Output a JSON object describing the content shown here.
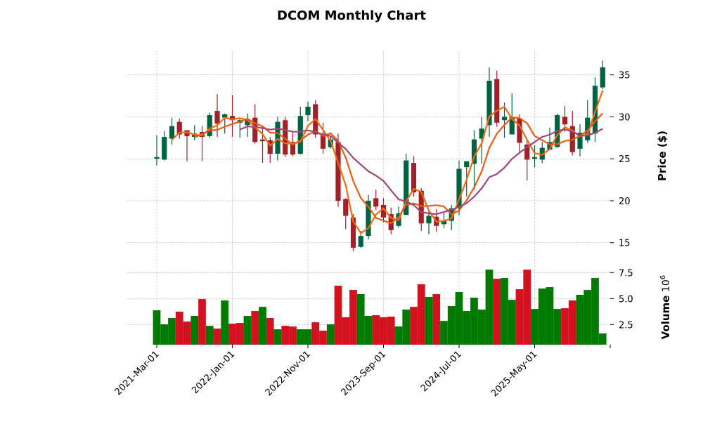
{
  "chart_data": {
    "type": "candlestick",
    "title": "DCOM Monthly Chart",
    "ylabel": "Price ($)",
    "volume_label": "Volume",
    "volume_multiplier_label": "10",
    "volume_multiplier_exp": "6",
    "x_start": "2021-03-01",
    "frequency": "monthly",
    "x_ticks": [
      {
        "index": 0,
        "label": "2021-Mar-01"
      },
      {
        "index": 10,
        "label": "2022-Jan-01"
      },
      {
        "index": 20,
        "label": "2022-Nov-01"
      },
      {
        "index": 30,
        "label": "2023-Sep-01"
      },
      {
        "index": 40,
        "label": "2024-Jul-01"
      },
      {
        "index": 50,
        "label": "2025-May-01"
      }
    ],
    "y_ticks": [
      {
        "value": 15,
        "label": "15"
      },
      {
        "value": 20,
        "label": "20"
      },
      {
        "value": 25,
        "label": "25"
      },
      {
        "value": 30,
        "label": "30"
      },
      {
        "value": 35,
        "label": "35"
      }
    ],
    "volume_ticks": [
      {
        "value": 2.5,
        "label": "2.5"
      },
      {
        "value": 5.0,
        "label": "5.0"
      },
      {
        "value": 7.5,
        "label": "7.5"
      }
    ],
    "ylim": [
      12.8,
      37.9
    ],
    "volume_ylim": [
      0.56,
      8.47
    ],
    "moving_averages": [
      3,
      6,
      12
    ],
    "colors": {
      "up": "#006340",
      "down": "#a02128",
      "vol_up": "#007a00",
      "vol_down": "#d4111e",
      "mav": [
        "#f26a0f",
        "#ee5a14",
        "#a0477a"
      ]
    },
    "ohlc": [
      [
        25.0,
        27.8,
        24.2,
        25.2
      ],
      [
        24.9,
        28.3,
        24.8,
        27.6
      ],
      [
        27.4,
        29.9,
        26.7,
        28.9
      ],
      [
        29.4,
        29.8,
        27.4,
        27.9
      ],
      [
        28.4,
        28.4,
        24.7,
        27.7
      ],
      [
        27.6,
        29.0,
        27.2,
        28.0
      ],
      [
        28.2,
        28.9,
        24.7,
        27.6
      ],
      [
        27.7,
        30.5,
        27.5,
        30.2
      ],
      [
        30.7,
        32.7,
        27.6,
        29.2
      ],
      [
        29.9,
        30.4,
        28.0,
        30.3
      ],
      [
        30.1,
        32.6,
        27.6,
        29.6
      ],
      [
        29.3,
        29.9,
        27.5,
        29.6
      ],
      [
        29.0,
        30.4,
        27.6,
        29.7
      ],
      [
        29.9,
        31.5,
        26.8,
        27.0
      ],
      [
        27.3,
        28.8,
        24.5,
        27.1
      ],
      [
        27.2,
        27.6,
        24.5,
        25.6
      ],
      [
        25.6,
        30.0,
        24.8,
        29.4
      ],
      [
        29.6,
        30.0,
        25.2,
        25.5
      ],
      [
        27.0,
        28.3,
        25.3,
        25.5
      ],
      [
        25.6,
        31.2,
        25.5,
        30.1
      ],
      [
        30.2,
        31.8,
        29.5,
        31.2
      ],
      [
        31.5,
        32.0,
        27.5,
        27.9
      ],
      [
        28.0,
        29.3,
        25.6,
        26.2
      ],
      [
        26.4,
        27.8,
        26.2,
        27.3
      ],
      [
        27.0,
        28.0,
        19.3,
        20.0
      ],
      [
        20.2,
        20.3,
        16.6,
        18.2
      ],
      [
        18.0,
        18.4,
        14.0,
        14.4
      ],
      [
        14.5,
        16.4,
        14.4,
        15.8
      ],
      [
        15.8,
        20.7,
        15.4,
        20.0
      ],
      [
        20.3,
        21.3,
        18.9,
        19.3
      ],
      [
        19.5,
        20.3,
        17.4,
        18.0
      ],
      [
        18.4,
        19.2,
        16.0,
        16.5
      ],
      [
        17.0,
        19.3,
        16.8,
        18.5
      ],
      [
        18.3,
        25.6,
        18.3,
        24.8
      ],
      [
        24.5,
        25.3,
        20.5,
        21.0
      ],
      [
        21.2,
        21.5,
        16.4,
        17.3
      ],
      [
        17.3,
        18.8,
        16.0,
        18.2
      ],
      [
        18.1,
        19.0,
        16.3,
        17.0
      ],
      [
        17.2,
        18.6,
        16.7,
        17.6
      ],
      [
        17.6,
        19.5,
        16.5,
        19.1
      ],
      [
        19.1,
        24.8,
        18.3,
        23.8
      ],
      [
        24.0,
        24.7,
        20.5,
        24.7
      ],
      [
        24.4,
        28.4,
        21.3,
        27.3
      ],
      [
        27.4,
        30.0,
        24.4,
        28.6
      ],
      [
        29.0,
        35.9,
        27.6,
        34.3
      ],
      [
        34.5,
        35.5,
        28.8,
        29.3
      ],
      [
        29.6,
        31.7,
        27.5,
        30.0
      ],
      [
        27.9,
        32.8,
        27.9,
        30.0
      ],
      [
        29.8,
        30.3,
        25.8,
        26.9
      ],
      [
        26.7,
        27.2,
        22.4,
        24.9
      ],
      [
        25.0,
        26.6,
        24.0,
        25.2
      ],
      [
        24.9,
        27.0,
        24.5,
        26.3
      ],
      [
        26.1,
        28.7,
        26.0,
        27.0
      ],
      [
        26.4,
        30.4,
        26.3,
        30.2
      ],
      [
        30.0,
        31.3,
        28.2,
        29.1
      ],
      [
        28.9,
        30.7,
        25.4,
        25.8
      ],
      [
        26.2,
        29.1,
        25.3,
        28.1
      ],
      [
        27.2,
        32.0,
        26.9,
        29.9
      ],
      [
        28.0,
        34.7,
        27.0,
        33.7
      ],
      [
        33.5,
        36.7,
        33.3,
        35.9
      ]
    ],
    "volume": [
      3.87,
      2.52,
      3.13,
      3.74,
      2.79,
      3.33,
      4.95,
      2.38,
      2.11,
      4.82,
      2.58,
      2.65,
      3.33,
      3.8,
      4.2,
      3.13,
      2.04,
      2.38,
      2.31,
      2.04,
      2.04,
      2.72,
      1.91,
      2.52,
      6.24,
      3.2,
      5.83,
      5.43,
      3.33,
      3.4,
      3.2,
      3.26,
      2.31,
      3.94,
      4.2,
      6.38,
      5.16,
      5.43,
      2.85,
      4.28,
      5.63,
      3.8,
      5.09,
      3.94,
      7.79,
      6.91,
      6.98,
      4.88,
      5.9,
      7.79,
      4.0,
      5.97,
      6.1,
      4.0,
      4.07,
      4.82,
      5.36,
      5.83,
      6.98,
      1.64
    ],
    "volume_up": [
      true,
      true,
      true,
      false,
      false,
      true,
      false,
      true,
      false,
      true,
      false,
      false,
      true,
      false,
      true,
      false,
      true,
      false,
      false,
      true,
      true,
      false,
      false,
      true,
      false,
      false,
      false,
      true,
      true,
      false,
      false,
      false,
      true,
      true,
      false,
      false,
      true,
      false,
      true,
      true,
      true,
      true,
      true,
      true,
      true,
      false,
      true,
      true,
      false,
      false,
      true,
      true,
      true,
      true,
      false,
      false,
      true,
      true,
      true,
      true
    ]
  }
}
